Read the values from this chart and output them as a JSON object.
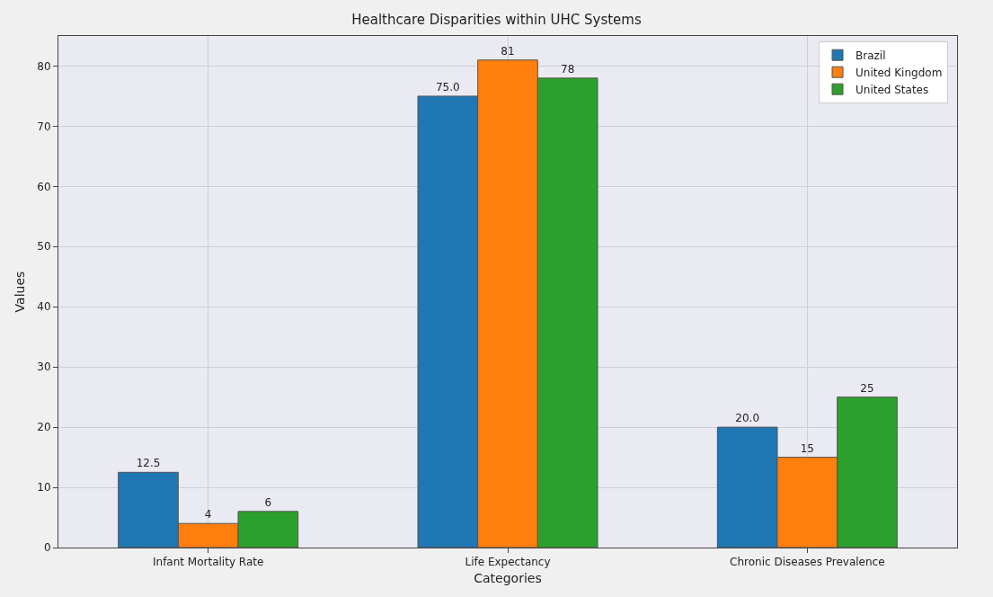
{
  "chart_data": {
    "type": "bar",
    "title": "Healthcare Disparities within UHC Systems",
    "xlabel": "Categories",
    "ylabel": "Values",
    "categories": [
      "Infant Mortality Rate",
      "Life Expectancy",
      "Chronic Diseases Prevalence"
    ],
    "series": [
      {
        "name": "Brazil",
        "color": "#1f77b4",
        "values": [
          12.5,
          75.0,
          20.0
        ],
        "value_labels": [
          "12.5",
          "75.0",
          "20.0"
        ]
      },
      {
        "name": "United Kingdom",
        "color": "#ff7f0e",
        "values": [
          4,
          81,
          15
        ],
        "value_labels": [
          "4",
          "81",
          "15"
        ]
      },
      {
        "name": "United States",
        "color": "#2ca02c",
        "values": [
          6,
          78,
          25
        ],
        "value_labels": [
          "6",
          "78",
          "25"
        ]
      }
    ],
    "ylim": [
      0,
      85
    ],
    "yticks": [
      0,
      10,
      20,
      30,
      40,
      50,
      60,
      70,
      80
    ],
    "grid": true,
    "legend": "top right"
  }
}
